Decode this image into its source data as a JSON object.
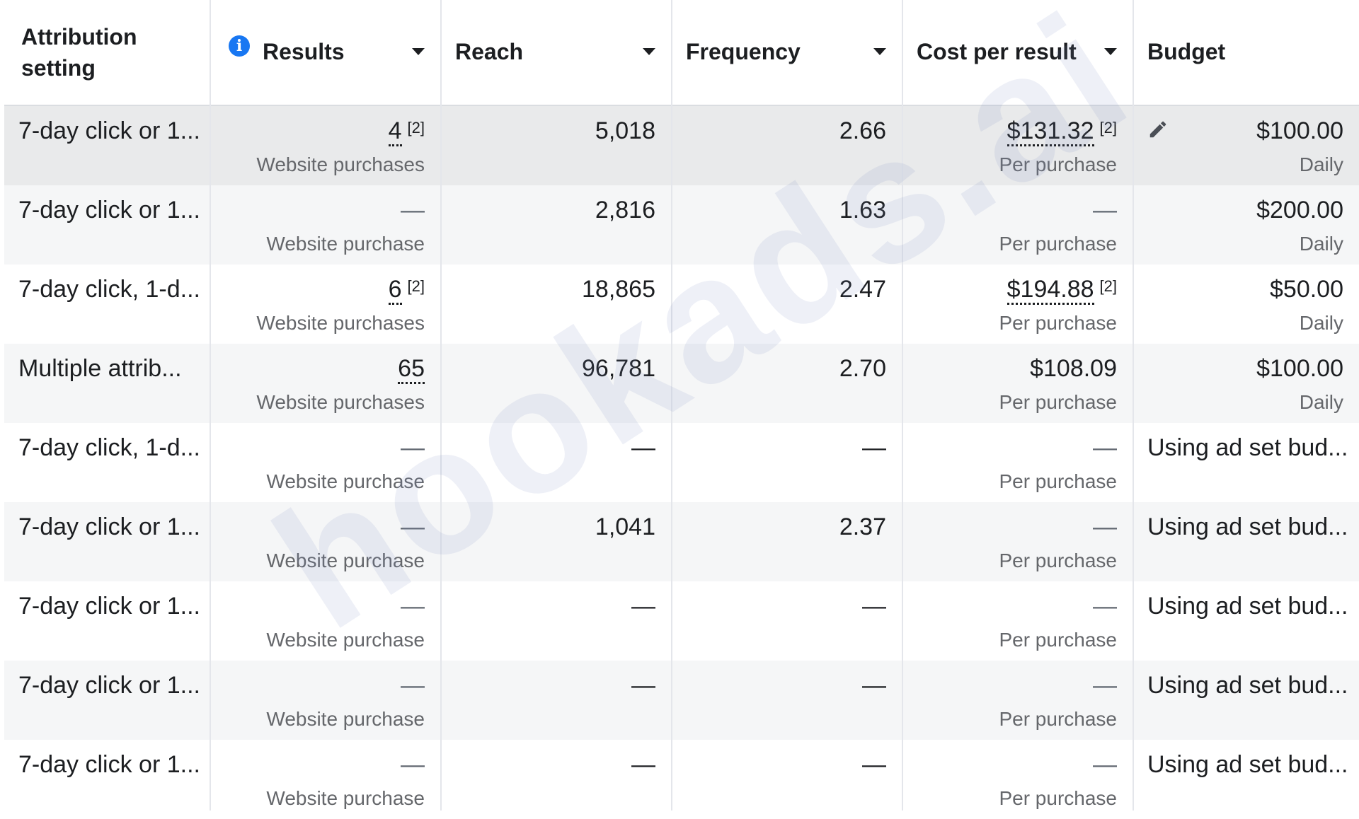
{
  "columns": {
    "attribution": "Attribution setting",
    "results": "Results",
    "reach": "Reach",
    "frequency": "Frequency",
    "cost_per_result": "Cost per result",
    "budget": "Budget"
  },
  "icons": {
    "info": "info-icon",
    "sort": "chevron-down-icon",
    "edit": "pencil-icon"
  },
  "colors": {
    "info_blue": "#1877f2",
    "selected_row": "#e9eaeb",
    "alt_row": "#f5f6f7"
  },
  "watermark": "hookads.ai",
  "rows": [
    {
      "attribution": "7-day click or 1...",
      "results": "4",
      "results_note": "[2]",
      "results_sub": "Website purchases",
      "reach": "5,018",
      "frequency": "2.66",
      "cost": "$131.32",
      "cost_note": "[2]",
      "cost_sub": "Per purchase",
      "budget": "$100.00",
      "budget_sub": "Daily"
    },
    {
      "attribution": "7-day click or 1...",
      "results": "—",
      "results_note": "",
      "results_sub": "Website purchase",
      "reach": "2,816",
      "frequency": "1.63",
      "cost": "—",
      "cost_note": "",
      "cost_sub": "Per purchase",
      "budget": "$200.00",
      "budget_sub": "Daily"
    },
    {
      "attribution": "7-day click, 1-d...",
      "results": "6",
      "results_note": "[2]",
      "results_sub": "Website purchases",
      "reach": "18,865",
      "frequency": "2.47",
      "cost": "$194.88",
      "cost_note": "[2]",
      "cost_sub": "Per purchase",
      "budget": "$50.00",
      "budget_sub": "Daily"
    },
    {
      "attribution": "Multiple attrib...",
      "results": "65",
      "results_note": "",
      "results_sub": "Website purchases",
      "reach": "96,781",
      "frequency": "2.70",
      "cost": "$108.09",
      "cost_note": "",
      "cost_sub": "Per purchase",
      "budget": "$100.00",
      "budget_sub": "Daily"
    },
    {
      "attribution": "7-day click, 1-d...",
      "results": "—",
      "results_note": "",
      "results_sub": "Website purchase",
      "reach": "—",
      "frequency": "—",
      "cost": "—",
      "cost_note": "",
      "cost_sub": "Per purchase",
      "budget": "Using ad set bud...",
      "budget_sub": ""
    },
    {
      "attribution": "7-day click or 1...",
      "results": "—",
      "results_note": "",
      "results_sub": "Website purchase",
      "reach": "1,041",
      "frequency": "2.37",
      "cost": "—",
      "cost_note": "",
      "cost_sub": "Per purchase",
      "budget": "Using ad set bud...",
      "budget_sub": ""
    },
    {
      "attribution": "7-day click or 1...",
      "results": "—",
      "results_note": "",
      "results_sub": "Website purchase",
      "reach": "—",
      "frequency": "—",
      "cost": "—",
      "cost_note": "",
      "cost_sub": "Per purchase",
      "budget": "Using ad set bud...",
      "budget_sub": ""
    },
    {
      "attribution": "7-day click or 1...",
      "results": "—",
      "results_note": "",
      "results_sub": "Website purchase",
      "reach": "—",
      "frequency": "—",
      "cost": "—",
      "cost_note": "",
      "cost_sub": "Per purchase",
      "budget": "Using ad set bud...",
      "budget_sub": ""
    },
    {
      "attribution": "7-day click or 1...",
      "results": "—",
      "results_note": "",
      "results_sub": "Website purchase",
      "reach": "—",
      "frequency": "—",
      "cost": "—",
      "cost_note": "",
      "cost_sub": "Per purchase",
      "budget": "Using ad set bud...",
      "budget_sub": ""
    }
  ]
}
